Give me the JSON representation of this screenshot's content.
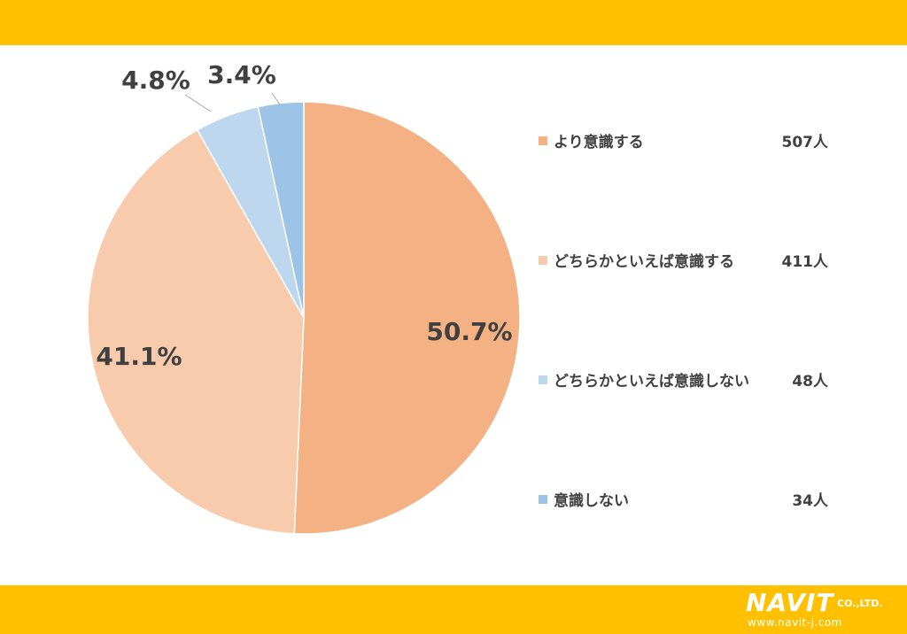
{
  "chart_data": {
    "type": "pie",
    "title": "",
    "start_angle_deg": 0,
    "direction": "clockwise",
    "slices": [
      {
        "label": "より意識する",
        "percent": 50.7,
        "count_label": "507人",
        "color": "#F4B183"
      },
      {
        "label": "どちらかといえば意識する",
        "percent": 41.1,
        "count_label": "411人",
        "color": "#F8CBAD"
      },
      {
        "label": "どちらかといえば意識しない",
        "percent": 4.8,
        "count_label": "48人",
        "color": "#BDD7EE"
      },
      {
        "label": "意識しない",
        "percent": 3.4,
        "count_label": "34人",
        "color": "#9DC3E6"
      }
    ],
    "value_labels": [
      "50.7%",
      "41.1%",
      "4.8%",
      "3.4%"
    ],
    "legend_position": "right"
  },
  "colors": {
    "band": "#FFC000",
    "text": "#404040",
    "leader": "#A6A6A6"
  },
  "logo": {
    "name": "NAVIT",
    "suffix": "CO.,LTD.",
    "url": "www.navit-j.com"
  }
}
